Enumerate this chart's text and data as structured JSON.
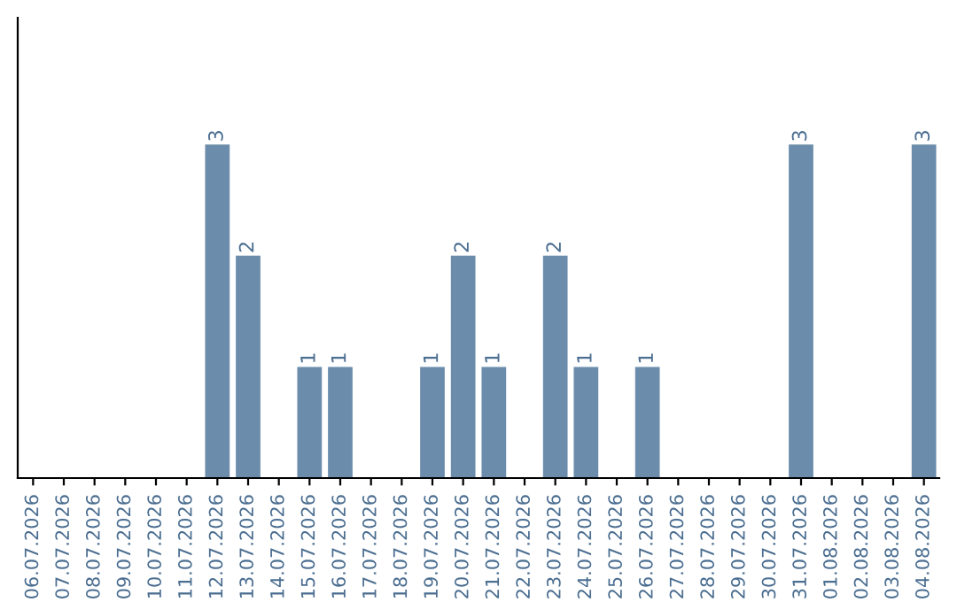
{
  "chart_data": {
    "type": "bar",
    "categories": [
      "06.07.2026",
      "07.07.2026",
      "08.07.2026",
      "09.07.2026",
      "10.07.2026",
      "11.07.2026",
      "12.07.2026",
      "13.07.2026",
      "14.07.2026",
      "15.07.2026",
      "16.07.2026",
      "17.07.2026",
      "18.07.2026",
      "19.07.2026",
      "20.07.2026",
      "21.07.2026",
      "22.07.2026",
      "23.07.2026",
      "24.07.2026",
      "25.07.2026",
      "26.07.2026",
      "27.07.2026",
      "28.07.2026",
      "29.07.2026",
      "30.07.2026",
      "31.07.2026",
      "01.08.2026",
      "02.08.2026",
      "03.08.2026",
      "04.08.2026"
    ],
    "values": [
      0,
      0,
      0,
      0,
      0,
      0,
      3,
      2,
      0,
      1,
      1,
      0,
      0,
      1,
      2,
      1,
      0,
      2,
      1,
      0,
      1,
      0,
      0,
      0,
      0,
      3,
      0,
      0,
      0,
      3
    ],
    "value_labels": [
      null,
      null,
      null,
      null,
      null,
      null,
      "3",
      "2",
      null,
      "1",
      "1",
      null,
      null,
      "1",
      "2",
      "1",
      null,
      "2",
      "1",
      null,
      "1",
      null,
      null,
      null,
      null,
      "3",
      null,
      null,
      null,
      "3"
    ],
    "color": "#6b8cab",
    "tick_labels": "x",
    "grid": false,
    "legend": false
  }
}
